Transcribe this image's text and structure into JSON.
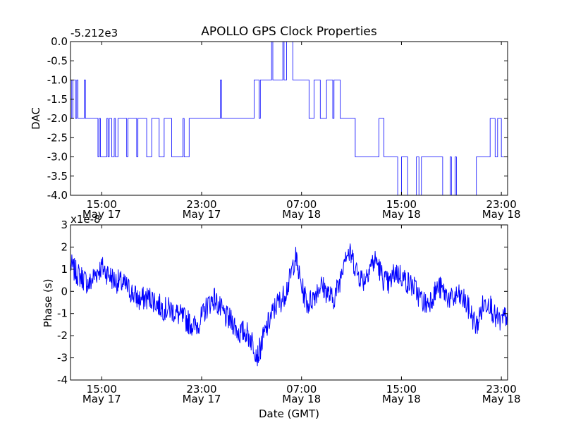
{
  "chart_data": [
    {
      "type": "line",
      "title": "APOLLO GPS Clock Properties",
      "xlabel": "",
      "ylabel": "DAC",
      "offset_text": "-5.212e3",
      "ylim": [
        -4.0,
        0.0
      ],
      "yticks": [
        {
          "value": 0.0,
          "label": "0.0"
        },
        {
          "value": -0.5,
          "label": "-0.5"
        },
        {
          "value": -1.0,
          "label": "-1.0"
        },
        {
          "value": -1.5,
          "label": "-1.5"
        },
        {
          "value": -2.0,
          "label": "-2.0"
        },
        {
          "value": -2.5,
          "label": "-2.5"
        },
        {
          "value": -3.0,
          "label": "-3.0"
        },
        {
          "value": -3.5,
          "label": "-3.5"
        },
        {
          "value": -4.0,
          "label": "-4.0"
        }
      ],
      "xlim_hours": [
        12.5,
        47.5
      ],
      "xticks": [
        {
          "hour": 15,
          "time": "15:00",
          "date": "May 17"
        },
        {
          "hour": 23,
          "time": "23:00",
          "date": "May 17"
        },
        {
          "hour": 31,
          "time": "07:00",
          "date": "May 18"
        },
        {
          "hour": 39,
          "time": "15:00",
          "date": "May 18"
        },
        {
          "hour": 47,
          "time": "23:00",
          "date": "May 18"
        }
      ],
      "series": [
        {
          "name": "DAC",
          "color": "#0000ff",
          "x_hours": [
            12.5,
            12.6,
            12.7,
            12.9,
            13.0,
            13.1,
            13.3,
            13.6,
            13.7,
            14.0,
            14.7,
            14.8,
            14.9,
            15.4,
            15.5,
            15.6,
            15.8,
            16.0,
            16.1,
            16.3,
            16.5,
            17.0,
            17.1,
            17.2,
            17.8,
            17.9,
            18.5,
            18.6,
            19.0,
            19.5,
            19.6,
            20.0,
            20.5,
            20.6,
            21.5,
            21.6,
            22.0,
            23.2,
            24.5,
            24.6,
            25.0,
            27.0,
            27.2,
            27.6,
            27.7,
            28.0,
            28.6,
            28.7,
            29.3,
            29.5,
            29.6,
            29.8,
            30.3,
            31.2,
            31.6,
            32.0,
            32.4,
            32.5,
            33.0,
            33.3,
            33.5,
            33.6,
            34.1,
            34.2,
            35.0,
            35.3,
            37.0,
            37.2,
            37.6,
            37.7,
            38.6,
            38.7,
            39.0,
            39.5,
            40.2,
            40.4,
            40.6,
            42.0,
            42.3,
            42.9,
            43.0,
            43.3,
            43.4,
            45.0,
            45.5,
            46.0,
            46.1,
            46.5,
            46.7,
            47.0,
            47.5
          ],
          "y": [
            -1.0,
            -2.0,
            -1.0,
            -2.0,
            -1.0,
            -2.0,
            -2.0,
            -1.0,
            -2.0,
            -2.0,
            -3.0,
            -2.0,
            -3.0,
            -2.0,
            -3.0,
            -2.0,
            -3.0,
            -2.0,
            -3.0,
            -2.0,
            -2.0,
            -3.0,
            -2.0,
            -2.0,
            -3.0,
            -2.0,
            -2.0,
            -3.0,
            -2.0,
            -2.0,
            -3.0,
            -2.0,
            -2.0,
            -3.0,
            -2.0,
            -3.0,
            -2.0,
            -2.0,
            -1.0,
            -2.0,
            -2.0,
            -2.0,
            -1.0,
            -2.0,
            -1.0,
            -1.0,
            0.0,
            -1.0,
            -1.0,
            0.0,
            -1.0,
            0.0,
            -1.0,
            -1.0,
            -2.0,
            -1.0,
            -1.0,
            -2.0,
            -1.0,
            -1.0,
            -2.0,
            -1.0,
            -2.0,
            -2.0,
            -2.0,
            -3.0,
            -3.0,
            -2.0,
            -3.0,
            -3.0,
            -3.0,
            -4.0,
            -3.0,
            -4.0,
            -3.0,
            -4.0,
            -3.0,
            -3.0,
            -4.0,
            -3.0,
            -4.0,
            -3.0,
            -4.0,
            -3.0,
            -3.0,
            -3.0,
            -2.0,
            -3.0,
            -2.0,
            -3.0,
            -3.0
          ]
        }
      ]
    },
    {
      "type": "line",
      "title": "",
      "xlabel": "Date (GMT)",
      "ylabel": "Phase (s)",
      "offset_text": "x1e-8",
      "ylim": [
        -4,
        3
      ],
      "yticks": [
        {
          "value": 3,
          "label": "3"
        },
        {
          "value": 2,
          "label": "2"
        },
        {
          "value": 1,
          "label": "1"
        },
        {
          "value": 0,
          "label": "0"
        },
        {
          "value": -1,
          "label": "-1"
        },
        {
          "value": -2,
          "label": "-2"
        },
        {
          "value": -3,
          "label": "-3"
        },
        {
          "value": -4,
          "label": "-4"
        }
      ],
      "xlim_hours": [
        12.5,
        47.5
      ],
      "xticks": [
        {
          "hour": 15,
          "time": "15:00",
          "date": "May 17"
        },
        {
          "hour": 23,
          "time": "23:00",
          "date": "May 17"
        },
        {
          "hour": 31,
          "time": "07:00",
          "date": "May 18"
        },
        {
          "hour": 39,
          "time": "15:00",
          "date": "May 18"
        },
        {
          "hour": 47,
          "time": "23:00",
          "date": "May 18"
        }
      ],
      "series": [
        {
          "name": "Phase",
          "color": "#0000ff",
          "x_hours": [
            12.5,
            13.0,
            13.5,
            14.0,
            14.5,
            15.0,
            15.5,
            16.0,
            16.5,
            17.0,
            17.5,
            18.0,
            18.5,
            19.0,
            19.5,
            20.0,
            20.5,
            21.0,
            21.5,
            22.0,
            22.5,
            23.0,
            23.5,
            24.0,
            24.5,
            25.0,
            25.5,
            26.0,
            26.5,
            27.0,
            27.5,
            28.0,
            28.5,
            29.0,
            29.5,
            30.0,
            30.5,
            31.0,
            31.5,
            32.0,
            32.5,
            33.0,
            33.5,
            34.0,
            34.5,
            35.0,
            35.5,
            36.0,
            36.5,
            37.0,
            37.5,
            38.0,
            38.5,
            39.0,
            39.5,
            40.0,
            40.5,
            41.0,
            41.5,
            42.0,
            42.5,
            43.0,
            43.5,
            44.0,
            44.5,
            45.0,
            45.5,
            46.0,
            46.5,
            47.0,
            47.5
          ],
          "y": [
            1.2,
            0.8,
            0.6,
            0.3,
            0.8,
            1.1,
            0.8,
            0.5,
            0.4,
            0.2,
            -0.1,
            -0.4,
            -0.3,
            -0.3,
            -0.6,
            -0.8,
            -0.8,
            -1.0,
            -1.2,
            -1.4,
            -1.6,
            -1.2,
            -0.6,
            -0.3,
            -0.8,
            -1.2,
            -1.4,
            -1.9,
            -1.8,
            -2.2,
            -2.9,
            -2.0,
            -1.2,
            -0.6,
            -0.3,
            0.4,
            1.6,
            0.2,
            -0.6,
            -0.2,
            0.3,
            0.0,
            -0.4,
            0.3,
            1.8,
            1.6,
            0.8,
            0.5,
            1.2,
            1.4,
            0.6,
            0.3,
            0.9,
            0.7,
            0.4,
            0.2,
            -0.3,
            -0.6,
            -0.2,
            0.2,
            -0.1,
            -0.4,
            -0.2,
            -0.4,
            -0.9,
            -1.6,
            -0.7,
            -0.4,
            -1.2,
            -1.4,
            -1.0
          ]
        }
      ]
    }
  ]
}
